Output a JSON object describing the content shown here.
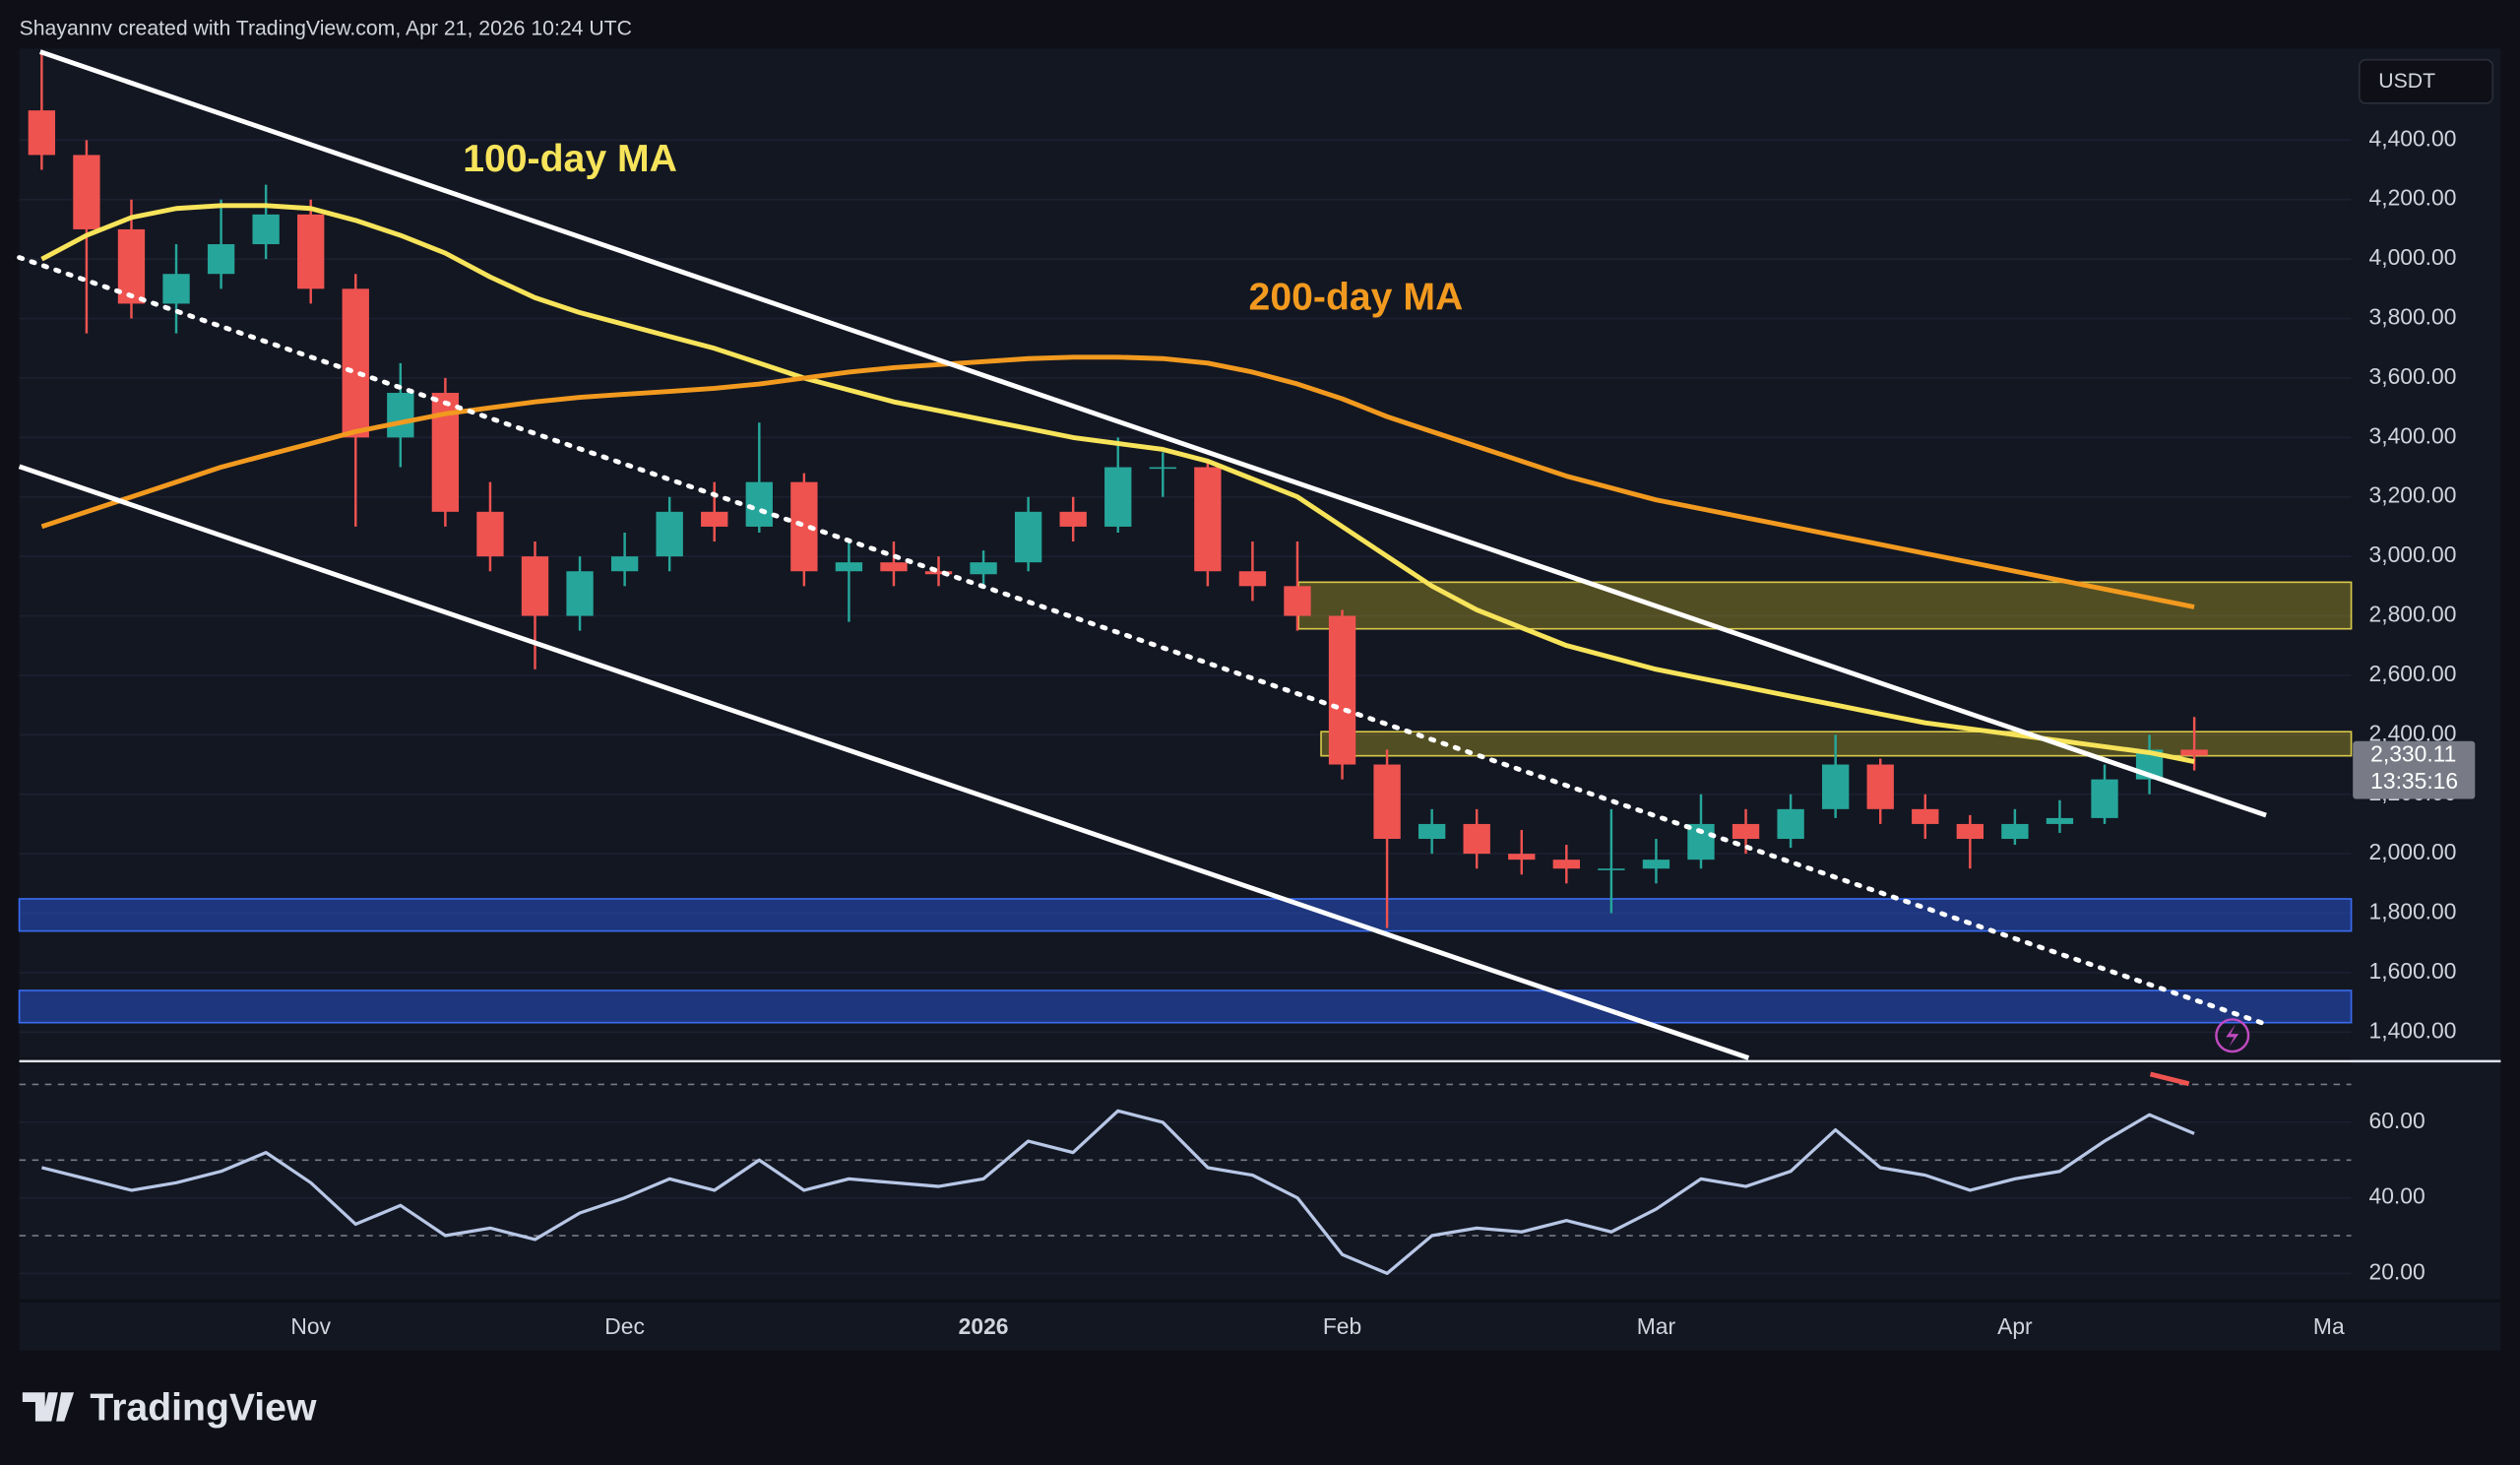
{
  "header": {
    "text": "Shayannv created with TradingView.com, Apr 21, 2026 10:24 UTC"
  },
  "footer": {
    "logo": "TradingView"
  },
  "chart_data": [
    {
      "type": "candlestick",
      "currency": "USDT",
      "categories": [
        null,
        null,
        null,
        null,
        null,
        null,
        "Nov",
        null,
        null,
        null,
        null,
        null,
        null,
        "Dec",
        null,
        null,
        null,
        null,
        null,
        null,
        null,
        "2026",
        null,
        null,
        null,
        null,
        null,
        null,
        null,
        "Feb",
        null,
        null,
        null,
        null,
        null,
        null,
        "Mar",
        null,
        null,
        null,
        null,
        null,
        null,
        null,
        "Apr",
        null,
        null,
        null,
        null,
        null,
        null,
        "Ma"
      ],
      "open": [
        4500,
        4350,
        4100,
        3850,
        3950,
        4050,
        4150,
        3900,
        3400,
        3550,
        3150,
        3000,
        2800,
        2950,
        3000,
        3150,
        3100,
        3250,
        2950,
        2980,
        2950,
        2940,
        2980,
        3150,
        3100,
        3300,
        3300,
        2950,
        2900,
        2800,
        2300,
        2050,
        2100,
        2000,
        1980,
        1950,
        1950,
        1980,
        2100,
        2050,
        2150,
        2300,
        2150,
        2100,
        2050,
        2100,
        2120,
        2250,
        2350,
        null,
        null,
        null
      ],
      "high": [
        4700,
        4400,
        4200,
        4050,
        4200,
        4250,
        4200,
        3950,
        3650,
        3600,
        3250,
        3050,
        3000,
        3080,
        3200,
        3250,
        3450,
        3280,
        3050,
        3050,
        3000,
        3020,
        3200,
        3200,
        3400,
        3350,
        3320,
        3050,
        3050,
        2820,
        2350,
        2150,
        2150,
        2080,
        2030,
        2150,
        2050,
        2200,
        2150,
        2200,
        2400,
        2320,
        2200,
        2130,
        2150,
        2180,
        2300,
        2400,
        2460,
        null,
        null,
        null
      ],
      "low": [
        4300,
        3750,
        3800,
        3750,
        3900,
        4000,
        3850,
        3100,
        3300,
        3100,
        2950,
        2620,
        2750,
        2900,
        2950,
        3050,
        3080,
        2900,
        2780,
        2900,
        2900,
        2900,
        2950,
        3050,
        3080,
        3200,
        2900,
        2850,
        2750,
        2250,
        1750,
        2000,
        1950,
        1930,
        1900,
        1800,
        1900,
        1950,
        2000,
        2020,
        2120,
        2100,
        2050,
        1950,
        2030,
        2070,
        2100,
        2200,
        2280,
        null,
        null,
        null
      ],
      "close": [
        4350,
        4100,
        3850,
        3950,
        4050,
        4150,
        3900,
        3400,
        3550,
        3150,
        3000,
        2800,
        2950,
        3000,
        3150,
        3100,
        3250,
        2950,
        2980,
        2950,
        2940,
        2980,
        3150,
        3100,
        3300,
        3300,
        2950,
        2900,
        2800,
        2300,
        2050,
        2100,
        2000,
        1980,
        1950,
        1950,
        1980,
        2100,
        2050,
        2150,
        2300,
        2150,
        2100,
        2050,
        2100,
        2120,
        2250,
        2350,
        2330.11,
        null,
        null,
        null
      ],
      "colors": {
        "up": "#26a69a",
        "down": "#ef5350"
      },
      "lines": [
        {
          "label": "100-day MA",
          "color": "#f7e45a",
          "values": [
            4000,
            4080,
            4140,
            4170,
            4180,
            4180,
            4170,
            4130,
            4080,
            4020,
            3940,
            3870,
            3820,
            3780,
            3740,
            3700,
            3650,
            3600,
            3560,
            3520,
            3490,
            3460,
            3430,
            3400,
            3380,
            3360,
            3320,
            3260,
            3200,
            3100,
            3000,
            2900,
            2820,
            2760,
            2700,
            2660,
            2620,
            2590,
            2560,
            2530,
            2500,
            2470,
            2440,
            2420,
            2400,
            2380,
            2360,
            2340,
            2310,
            null,
            null,
            null
          ]
        },
        {
          "label": "200-day MA",
          "color": "#f29a1f",
          "values": [
            3100,
            3150,
            3200,
            3250,
            3300,
            3340,
            3380,
            3420,
            3450,
            3480,
            3500,
            3520,
            3535,
            3545,
            3555,
            3565,
            3580,
            3600,
            3620,
            3635,
            3645,
            3655,
            3665,
            3670,
            3670,
            3665,
            3650,
            3620,
            3580,
            3530,
            3470,
            3420,
            3370,
            3320,
            3270,
            3230,
            3190,
            3160,
            3130,
            3100,
            3070,
            3040,
            3010,
            2980,
            2950,
            2920,
            2890,
            2860,
            2830,
            null,
            null,
            null
          ]
        }
      ],
      "last_price": {
        "value": 2330.11,
        "label": "2,330.11"
      },
      "countdown": "13:35:16",
      "ylim": [
        1313,
        4708
      ],
      "yticks": [
        {
          "value": 1400,
          "label": "1,400.00"
        },
        {
          "value": 1600,
          "label": "1,600.00"
        },
        {
          "value": 1800,
          "label": "1,800.00"
        },
        {
          "value": 2000,
          "label": "2,000.00"
        },
        {
          "value": 2200,
          "label": "2,200.00"
        },
        {
          "value": 2400,
          "label": "2,400.00"
        },
        {
          "value": 2600,
          "label": "2,600.00"
        },
        {
          "value": 2800,
          "label": "2,800.00"
        },
        {
          "value": 3000,
          "label": "3,000.00"
        },
        {
          "value": 3200,
          "label": "3,200.00"
        },
        {
          "value": 3400,
          "label": "3,400.00"
        },
        {
          "value": 3600,
          "label": "3,600.00"
        },
        {
          "value": 3800,
          "label": "3,800.00"
        },
        {
          "value": 4000,
          "label": "4,000.00"
        },
        {
          "value": 4200,
          "label": "4,200.00"
        },
        {
          "value": 4400,
          "label": "4,400.00"
        }
      ]
    },
    {
      "type": "line",
      "color": "#b8c7e6",
      "values": [
        48,
        45,
        42,
        44,
        47,
        52,
        44,
        33,
        38,
        30,
        32,
        29,
        36,
        40,
        45,
        42,
        50,
        42,
        45,
        44,
        43,
        45,
        55,
        52,
        63,
        60,
        48,
        46,
        40,
        25,
        20,
        30,
        32,
        31,
        34,
        31,
        37,
        45,
        43,
        47,
        58,
        48,
        46,
        42,
        45,
        47,
        55,
        62,
        57,
        null,
        null,
        null
      ],
      "levels": [
        70,
        50,
        30
      ],
      "ylim": [
        13.2,
        75.3
      ],
      "yticks": [
        {
          "value": 20,
          "label": "20.00"
        },
        {
          "value": 40,
          "label": "40.00"
        },
        {
          "value": 60,
          "label": "60.00"
        }
      ]
    }
  ]
}
